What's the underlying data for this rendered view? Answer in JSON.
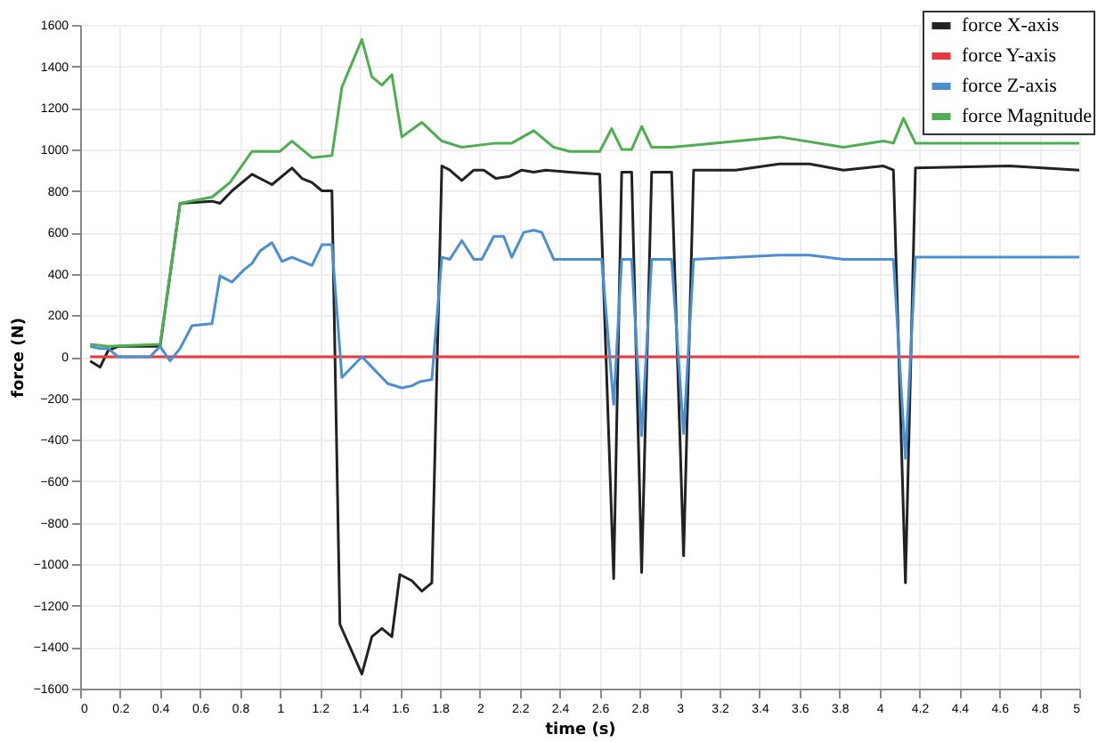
{
  "chart_data": {
    "type": "line",
    "xlabel": "time (s)",
    "ylabel": "force (N)",
    "xlim": [
      0,
      5
    ],
    "xticks": [
      0,
      0.2,
      0.4,
      0.6,
      0.8,
      1,
      1.2,
      1.4,
      1.6,
      1.8,
      2,
      2.2,
      2.4,
      2.6,
      2.8,
      3,
      3.2,
      3.4,
      3.6,
      3.8,
      4,
      4.2,
      4.4,
      4.6,
      4.8,
      5
    ],
    "ylim": [
      -1600,
      1600
    ],
    "yticks": [
      -1600,
      -1400,
      -1200,
      -1000,
      -800,
      -600,
      -400,
      -200,
      0,
      200,
      400,
      600,
      800,
      1000,
      1200,
      1400,
      1600
    ],
    "grid": true,
    "legend": "top right",
    "marker": "none",
    "line_style": "solid",
    "series": [
      {
        "name": "force X-axis",
        "color": "#222222",
        "x": [
          0.05,
          0.1,
          0.14,
          0.19,
          0.4,
          0.5,
          0.66,
          0.7,
          0.76,
          0.86,
          0.96,
          1.06,
          1.11,
          1.16,
          1.21,
          1.26,
          1.3,
          1.41,
          1.46,
          1.51,
          1.56,
          1.6,
          1.66,
          1.71,
          1.76,
          1.81,
          1.85,
          1.91,
          1.97,
          2.02,
          2.08,
          2.15,
          2.21,
          2.27,
          2.33,
          2.45,
          2.6,
          2.67,
          2.71,
          2.76,
          2.81,
          2.86,
          2.96,
          3.02,
          3.07,
          3.28,
          3.5,
          3.65,
          3.82,
          4.02,
          4.07,
          4.13,
          4.18,
          4.65,
          5.0
        ],
        "values": [
          -20,
          -50,
          30,
          50,
          50,
          740,
          750,
          740,
          800,
          880,
          830,
          910,
          860,
          840,
          800,
          800,
          -1290,
          -1530,
          -1350,
          -1310,
          -1350,
          -1050,
          -1080,
          -1130,
          -1090,
          920,
          900,
          850,
          900,
          900,
          860,
          870,
          900,
          890,
          900,
          890,
          880,
          -1070,
          890,
          890,
          -1040,
          890,
          890,
          -960,
          900,
          900,
          930,
          930,
          900,
          920,
          900,
          -1090,
          910,
          920,
          900
        ]
      },
      {
        "name": "force Y-axis",
        "color": "#e8383d",
        "x": [
          0.05,
          1.0,
          2.0,
          3.0,
          4.0,
          5.0
        ],
        "values": [
          0,
          0,
          0,
          0,
          0,
          0
        ]
      },
      {
        "name": "force Z-axis",
        "color": "#4a8fd4",
        "x": [
          0.05,
          0.1,
          0.14,
          0.19,
          0.35,
          0.4,
          0.45,
          0.5,
          0.56,
          0.66,
          0.7,
          0.76,
          0.82,
          0.86,
          0.9,
          0.96,
          1.01,
          1.06,
          1.16,
          1.21,
          1.26,
          1.31,
          1.41,
          1.46,
          1.54,
          1.61,
          1.66,
          1.7,
          1.76,
          1.81,
          1.85,
          1.91,
          1.97,
          2.01,
          2.07,
          2.12,
          2.16,
          2.22,
          2.27,
          2.31,
          2.37,
          2.61,
          2.67,
          2.71,
          2.76,
          2.81,
          2.86,
          2.96,
          3.02,
          3.07,
          3.5,
          3.65,
          3.82,
          4.07,
          4.13,
          4.18,
          4.65,
          5.0
        ],
        "values": [
          50,
          40,
          40,
          0,
          0,
          50,
          -20,
          40,
          150,
          160,
          390,
          360,
          420,
          450,
          510,
          550,
          460,
          480,
          440,
          540,
          540,
          -100,
          0,
          -50,
          -130,
          -150,
          -140,
          -120,
          -110,
          480,
          470,
          560,
          470,
          470,
          580,
          580,
          480,
          600,
          610,
          600,
          470,
          470,
          -230,
          470,
          470,
          -380,
          470,
          470,
          -370,
          470,
          490,
          490,
          470,
          470,
          -490,
          480,
          480,
          480
        ]
      },
      {
        "name": "force Magnitude",
        "color": "#4caf50",
        "x": [
          0.05,
          0.14,
          0.4,
          0.5,
          0.66,
          0.75,
          0.86,
          1.0,
          1.06,
          1.16,
          1.26,
          1.31,
          1.41,
          1.46,
          1.51,
          1.56,
          1.61,
          1.71,
          1.81,
          1.91,
          2.08,
          2.16,
          2.27,
          2.37,
          2.45,
          2.6,
          2.66,
          2.71,
          2.76,
          2.81,
          2.86,
          2.96,
          3.07,
          3.5,
          3.82,
          4.02,
          4.07,
          4.12,
          4.18,
          5.0
        ],
        "values": [
          60,
          50,
          60,
          740,
          770,
          840,
          990,
          990,
          1040,
          960,
          970,
          1300,
          1530,
          1350,
          1310,
          1360,
          1060,
          1130,
          1040,
          1010,
          1030,
          1030,
          1090,
          1010,
          990,
          990,
          1100,
          1000,
          1000,
          1110,
          1010,
          1010,
          1020,
          1060,
          1010,
          1040,
          1030,
          1150,
          1030,
          1030
        ]
      }
    ]
  }
}
